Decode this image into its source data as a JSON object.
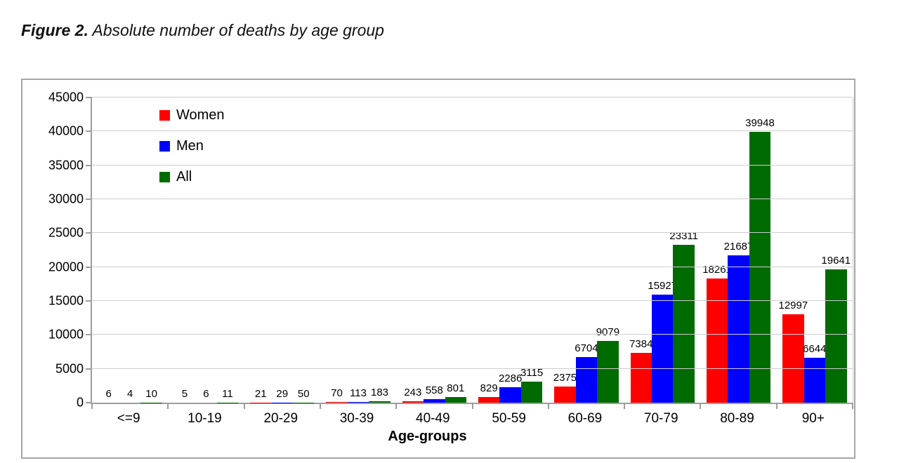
{
  "figure": {
    "caption_prefix": "Figure 2.",
    "caption_text": " Absolute number of deaths by age group"
  },
  "chart_data": {
    "type": "bar",
    "title": "",
    "xlabel": "Age-groups",
    "ylabel": "",
    "ylim": [
      0,
      45000
    ],
    "y_ticks": [
      0,
      5000,
      10000,
      15000,
      20000,
      25000,
      30000,
      35000,
      40000,
      45000
    ],
    "grid": true,
    "data_labels": true,
    "legend_position": "top-left-inside",
    "categories": [
      "<=9",
      "10-19",
      "20-29",
      "30-39",
      "40-49",
      "50-59",
      "60-69",
      "70-79",
      "80-89",
      "90+"
    ],
    "series": [
      {
        "name": "Women",
        "color": "#ff0000",
        "values": [
          6,
          5,
          21,
          70,
          243,
          829,
          2375,
          7384,
          18261,
          12997
        ]
      },
      {
        "name": "Men",
        "color": "#0000ff",
        "values": [
          4,
          6,
          29,
          113,
          558,
          2286,
          6704,
          15927,
          21687,
          6644
        ]
      },
      {
        "name": "All",
        "color": "#006b00",
        "values": [
          10,
          11,
          50,
          183,
          801,
          3115,
          9079,
          23311,
          39948,
          19641
        ]
      }
    ]
  }
}
